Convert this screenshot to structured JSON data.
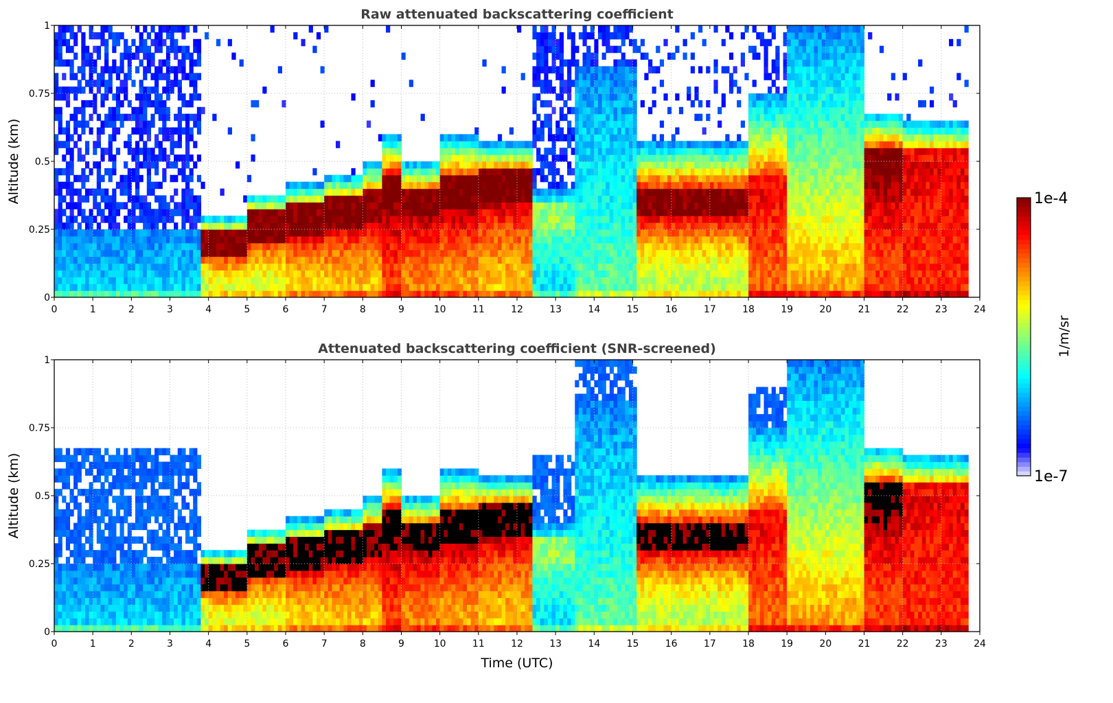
{
  "chart_data": [
    {
      "type": "heatmap",
      "title": "Raw attenuated backscattering coefficient",
      "xlabel": "",
      "ylabel": "Altitude (km)",
      "xlim": [
        0,
        24
      ],
      "ylim": [
        0,
        1
      ],
      "xticks": [
        "0",
        "1",
        "2",
        "3",
        "4",
        "5",
        "6",
        "7",
        "8",
        "9",
        "10",
        "11",
        "12",
        "13",
        "14",
        "15",
        "16",
        "17",
        "18",
        "19",
        "20",
        "21",
        "22",
        "23",
        "24"
      ],
      "yticks": [
        "0",
        "0.25",
        "0.5",
        "0.75",
        "1"
      ],
      "grid": true,
      "screened": false
    },
    {
      "type": "heatmap",
      "title": "Attenuated backscattering coefficient (SNR-screened)",
      "xlabel": "Time (UTC)",
      "ylabel": "Altitude (km)",
      "xlim": [
        0,
        24
      ],
      "ylim": [
        0,
        1
      ],
      "xticks": [
        "0",
        "1",
        "2",
        "3",
        "4",
        "5",
        "6",
        "7",
        "8",
        "9",
        "10",
        "11",
        "12",
        "13",
        "14",
        "15",
        "16",
        "17",
        "18",
        "19",
        "20",
        "21",
        "22",
        "23",
        "24"
      ],
      "yticks": [
        "0",
        "0.25",
        "0.5",
        "0.75",
        "1"
      ],
      "grid": true,
      "screened": true
    }
  ],
  "colorbar": {
    "label": "1/m/sr",
    "min_label": "1e-7",
    "max_label": "1e-4",
    "log10_range": [
      -7,
      -4
    ],
    "scale": "log"
  },
  "profile_segments": {
    "columns": [
      "t_start_h",
      "t_end_h",
      "surface_log10",
      "layer_peak_km",
      "layer_peak_log10",
      "signal_top_km",
      "noise_density_above_top",
      "screened_noise_top_km"
    ],
    "rows": [
      [
        0,
        3.8,
        -6.0,
        null,
        null,
        0.25,
        0.6,
        0.68
      ],
      [
        3.8,
        4.0,
        -5.5,
        0.2,
        -3.9,
        0.3,
        0.05,
        0
      ],
      [
        4.0,
        5.0,
        -5.3,
        0.2,
        -3.9,
        0.3,
        0.05,
        0
      ],
      [
        5.0,
        6.0,
        -5.3,
        0.27,
        -3.9,
        0.38,
        0.05,
        0
      ],
      [
        6.0,
        7.0,
        -5.1,
        0.28,
        -3.9,
        0.42,
        0.03,
        0
      ],
      [
        7.0,
        8.0,
        -5.0,
        0.32,
        -3.9,
        0.45,
        0.03,
        0
      ],
      [
        8.0,
        8.5,
        -5.0,
        0.33,
        -3.9,
        0.5,
        0.03,
        0
      ],
      [
        8.5,
        9.0,
        -4.6,
        0.4,
        -3.8,
        0.6,
        0.03,
        0
      ],
      [
        9.0,
        10.0,
        -4.8,
        0.35,
        -3.9,
        0.5,
        0.03,
        0
      ],
      [
        10.0,
        11.0,
        -4.9,
        0.38,
        -3.85,
        0.6,
        0.03,
        0
      ],
      [
        11.0,
        12.4,
        -5.0,
        0.42,
        -3.85,
        0.57,
        0.03,
        0
      ],
      [
        12.4,
        13.5,
        -6.0,
        0.3,
        -5.4,
        0.4,
        0.6,
        0.66
      ],
      [
        13.5,
        15.1,
        -5.6,
        null,
        null,
        0.85,
        0.6,
        1.0
      ],
      [
        15.1,
        18.0,
        -5.4,
        0.35,
        -3.9,
        0.57,
        0.15,
        0
      ],
      [
        18.0,
        19.0,
        -4.7,
        0.38,
        -4.3,
        0.75,
        0.3,
        0.9
      ],
      [
        19.0,
        21.0,
        -4.8,
        null,
        null,
        1.0,
        0,
        1.0
      ],
      [
        21.0,
        22.0,
        -4.6,
        0.5,
        -3.9,
        0.68,
        0.05,
        0
      ],
      [
        22.0,
        23.7,
        -4.5,
        0.5,
        -4.3,
        0.65,
        0.05,
        0
      ]
    ]
  }
}
